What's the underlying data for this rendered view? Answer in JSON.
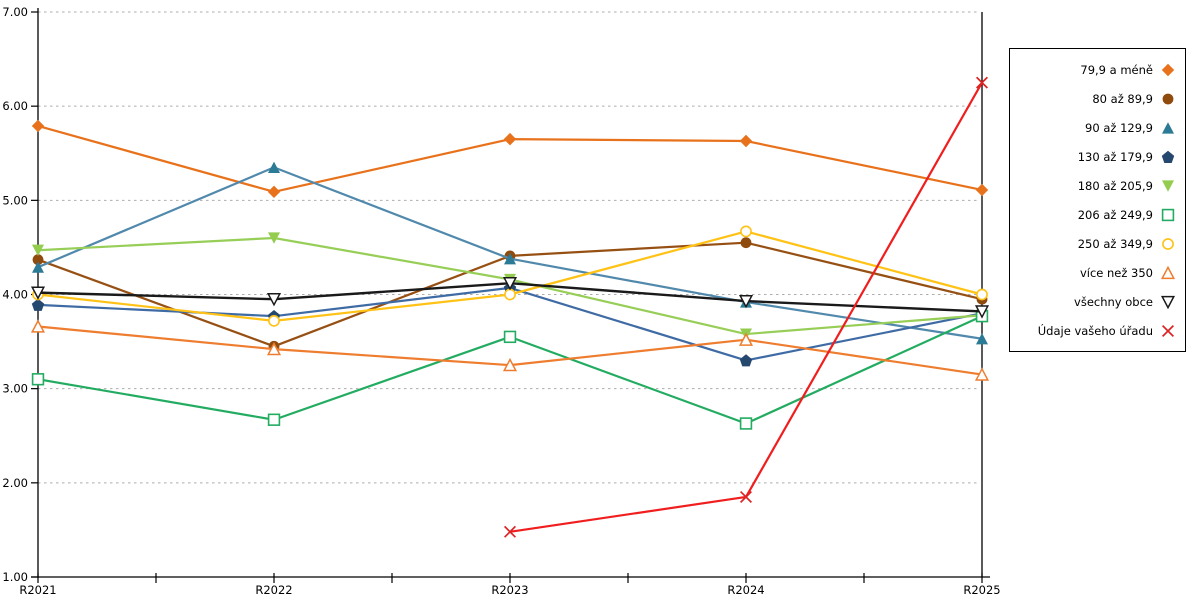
{
  "chart_data": {
    "type": "line",
    "title": "",
    "xlabel": "",
    "ylabel": "",
    "categories": [
      "R2021",
      "R2022",
      "R2023",
      "R2024",
      "R2025"
    ],
    "ylim": [
      1,
      7
    ],
    "ytick_step": 1,
    "ytick_labels": [
      "1.00",
      "2.00",
      "3.00",
      "4.00",
      "5.00",
      "6.00",
      "7.00"
    ],
    "grid": "horizontal-dotted",
    "grid_color": "#ADADAD",
    "legend_position": "right",
    "series": [
      {
        "name": "79,9 a méně",
        "marker": "diamond",
        "marker_color": "#E8721C",
        "line_color": "#E8721C",
        "values": [
          5.79,
          5.09,
          5.65,
          5.63,
          5.11
        ]
      },
      {
        "name": "80 až 89,9",
        "marker": "circle",
        "marker_color": "#8F4A0E",
        "line_color": "#975013",
        "values": [
          4.37,
          3.45,
          4.41,
          4.55,
          3.95
        ]
      },
      {
        "name": "90 až 129,9",
        "marker": "triangle-up",
        "marker_color": "#2B7A96",
        "line_color": "#5189AC",
        "values": [
          4.29,
          5.35,
          4.38,
          3.92,
          3.53
        ]
      },
      {
        "name": "130 až 179,9",
        "marker": "pentagon",
        "marker_color": "#25486F",
        "line_color": "#3F6BA5",
        "values": [
          3.89,
          3.77,
          4.07,
          3.3,
          3.8
        ]
      },
      {
        "name": "180 až 205,9",
        "marker": "triangle-down",
        "marker_color": "#93CC4F",
        "line_color": "#97CE57",
        "values": [
          4.47,
          4.6,
          4.16,
          3.58,
          3.78
        ]
      },
      {
        "name": "206 až 249,9",
        "marker": "square-open",
        "marker_color": "#23AC61",
        "line_color": "#23AC61",
        "values": [
          3.1,
          2.67,
          3.55,
          2.63,
          3.77
        ]
      },
      {
        "name": "250 až 349,9",
        "marker": "circle-open",
        "marker_color": "#FFC215",
        "line_color": "#FFC215",
        "values": [
          4.0,
          3.72,
          4.0,
          4.67,
          4.0
        ]
      },
      {
        "name": "více než 350",
        "marker": "triangle-open",
        "marker_color": "#EE7D2F",
        "line_color": "#EE7D2F",
        "values": [
          3.66,
          3.42,
          3.25,
          3.52,
          3.15
        ]
      },
      {
        "name": "všechny obce",
        "marker": "triangle-down-open",
        "marker_color": "#1A1A1A",
        "line_color": "#1A1A1A",
        "values": [
          4.02,
          3.95,
          4.12,
          3.93,
          3.82
        ]
      },
      {
        "name": "Údaje vašeho úřadu",
        "marker": "x",
        "marker_color": "#DC2424",
        "line_color": "#F01E1E",
        "values": [
          null,
          null,
          1.48,
          1.85,
          6.25
        ]
      }
    ]
  }
}
